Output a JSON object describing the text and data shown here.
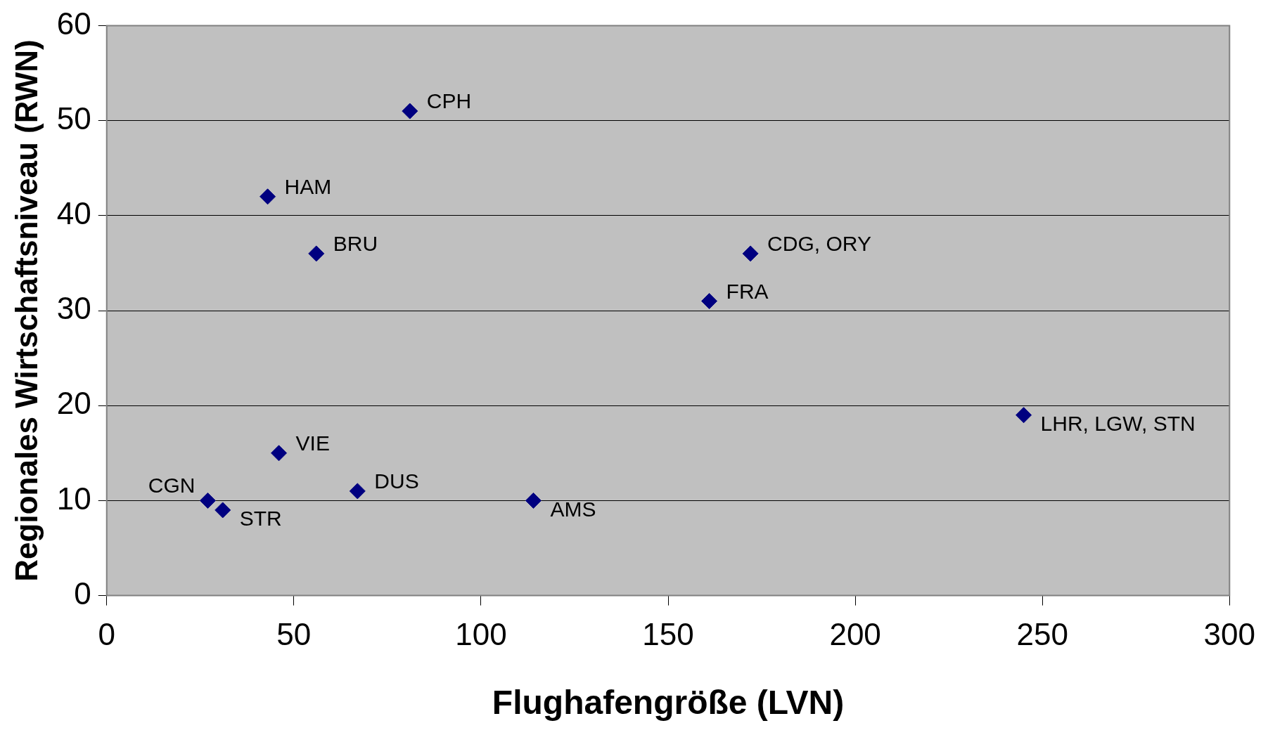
{
  "chart_data": {
    "type": "scatter",
    "xlabel": "Flughafengröße (LVN)",
    "ylabel": "Regionales Wirtschaftsniveau (RWN)",
    "x": [
      81,
      43,
      56,
      172,
      161,
      245,
      46,
      67,
      114,
      27,
      31
    ],
    "values": [
      51,
      42,
      36,
      36,
      31,
      19,
      15,
      11,
      10,
      10,
      9
    ],
    "color": "#000080",
    "marker": "diamond",
    "grid": "y",
    "legend": false,
    "xlim": [
      0,
      300
    ],
    "xticks": [
      0,
      50,
      100,
      150,
      200,
      250,
      300
    ],
    "ylim": [
      0,
      60
    ],
    "yticks": [
      0,
      10,
      20,
      30,
      40,
      50,
      60
    ],
    "annotations": [
      {
        "text": "CPH",
        "x": 81,
        "y": 51
      },
      {
        "text": "HAM",
        "x": 43,
        "y": 42
      },
      {
        "text": "BRU",
        "x": 56,
        "y": 36
      },
      {
        "text": "CDG, ORY",
        "x": 172,
        "y": 36
      },
      {
        "text": "FRA",
        "x": 161,
        "y": 31
      },
      {
        "text": "LHR, LGW, STN",
        "x": 245,
        "y": 19
      },
      {
        "text": "VIE",
        "x": 46,
        "y": 15
      },
      {
        "text": "DUS",
        "x": 67,
        "y": 11
      },
      {
        "text": "AMS",
        "x": 114,
        "y": 10
      },
      {
        "text": "CGN",
        "x": 27,
        "y": 10
      },
      {
        "text": "STR",
        "x": 31,
        "y": 9
      }
    ]
  }
}
